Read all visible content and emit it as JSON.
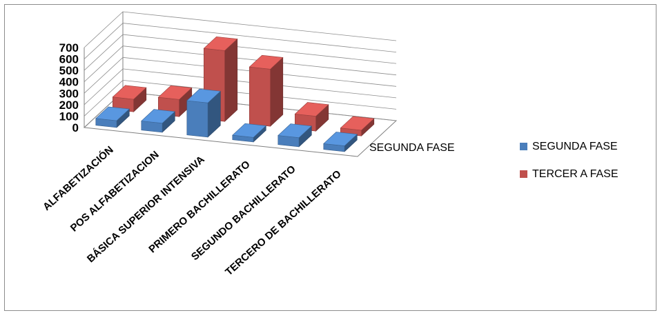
{
  "chart_data": {
    "type": "bar",
    "chart_style": "3d-clustered-column",
    "title": "",
    "categories": [
      "ALFABETIZACIÓN",
      "POS ALFABETIZACION",
      "BÁSICA SUPERIOR INTENSIVA",
      "PRIMERO BACHILLERATO",
      "SEGUNDO BACHILLERATO",
      "TERCERO DE BACHILLERATO"
    ],
    "series": [
      {
        "name": "SEGUNDA FASE",
        "color": "#4a7ebb",
        "values": [
          60,
          80,
          300,
          40,
          80,
          50
        ]
      },
      {
        "name": "TERCER A FASE",
        "color": "#c0504d",
        "values": [
          110,
          150,
          620,
          500,
          130,
          50
        ]
      }
    ],
    "ylim": [
      0,
      700
    ],
    "yticks": [
      "0",
      "100",
      "200",
      "300",
      "400",
      "500",
      "600",
      "700"
    ],
    "depth_axis_label": "SEGUNDA FASE",
    "grid": true,
    "legend_position": "right"
  }
}
